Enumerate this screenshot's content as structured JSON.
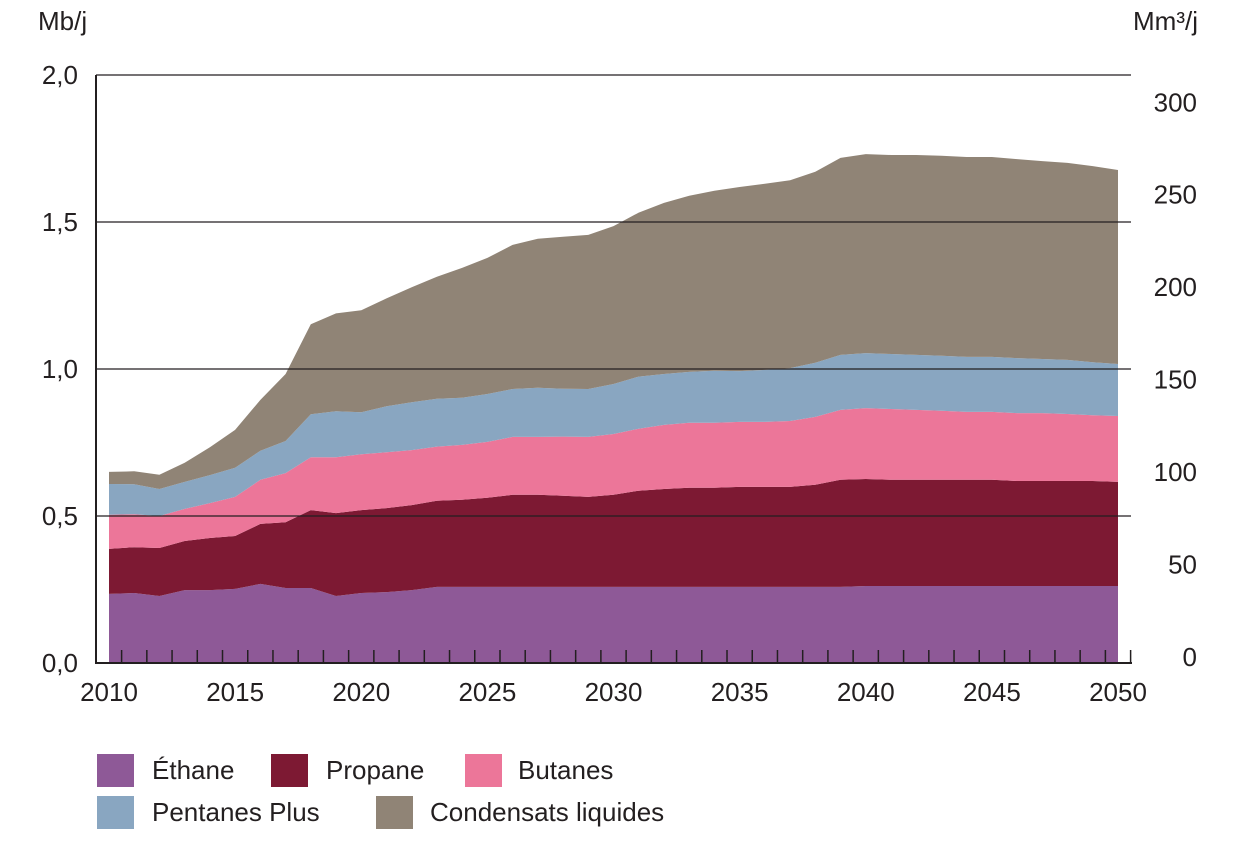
{
  "chart_data": {
    "type": "area",
    "stacked": true,
    "x": [
      2010,
      2011,
      2012,
      2013,
      2014,
      2015,
      2016,
      2017,
      2018,
      2019,
      2020,
      2021,
      2022,
      2023,
      2024,
      2025,
      2026,
      2027,
      2028,
      2029,
      2030,
      2031,
      2032,
      2033,
      2034,
      2035,
      2036,
      2037,
      2038,
      2039,
      2040,
      2041,
      2042,
      2043,
      2044,
      2045,
      2046,
      2047,
      2048,
      2049,
      2050
    ],
    "series": [
      {
        "name": "Éthane",
        "color": "#8e5997",
        "values": [
          0.235,
          0.238,
          0.228,
          0.248,
          0.248,
          0.252,
          0.269,
          0.255,
          0.255,
          0.228,
          0.238,
          0.241,
          0.248,
          0.259,
          0.259,
          0.259,
          0.259,
          0.259,
          0.259,
          0.259,
          0.259,
          0.259,
          0.259,
          0.259,
          0.259,
          0.259,
          0.259,
          0.259,
          0.259,
          0.259,
          0.262,
          0.262,
          0.262,
          0.262,
          0.262,
          0.262,
          0.262,
          0.262,
          0.262,
          0.262,
          0.262
        ]
      },
      {
        "name": "Propane",
        "color": "#7d1933",
        "values": [
          0.153,
          0.156,
          0.163,
          0.167,
          0.177,
          0.18,
          0.204,
          0.224,
          0.265,
          0.282,
          0.282,
          0.286,
          0.289,
          0.293,
          0.296,
          0.303,
          0.313,
          0.313,
          0.31,
          0.306,
          0.313,
          0.327,
          0.333,
          0.337,
          0.337,
          0.34,
          0.34,
          0.34,
          0.347,
          0.364,
          0.364,
          0.361,
          0.361,
          0.361,
          0.361,
          0.361,
          0.357,
          0.357,
          0.357,
          0.357,
          0.354
        ]
      },
      {
        "name": "Butanes",
        "color": "#ec7699",
        "values": [
          0.116,
          0.112,
          0.109,
          0.109,
          0.119,
          0.133,
          0.15,
          0.167,
          0.18,
          0.19,
          0.19,
          0.19,
          0.187,
          0.184,
          0.187,
          0.19,
          0.197,
          0.197,
          0.201,
          0.204,
          0.207,
          0.211,
          0.218,
          0.221,
          0.221,
          0.221,
          0.221,
          0.224,
          0.231,
          0.238,
          0.241,
          0.241,
          0.238,
          0.235,
          0.231,
          0.231,
          0.231,
          0.231,
          0.228,
          0.224,
          0.224
        ]
      },
      {
        "name": "Pentanes Plus",
        "color": "#89a6c1",
        "values": [
          0.105,
          0.102,
          0.092,
          0.092,
          0.095,
          0.099,
          0.099,
          0.109,
          0.146,
          0.156,
          0.143,
          0.156,
          0.163,
          0.163,
          0.16,
          0.163,
          0.163,
          0.167,
          0.163,
          0.163,
          0.17,
          0.177,
          0.173,
          0.173,
          0.177,
          0.173,
          0.177,
          0.18,
          0.184,
          0.187,
          0.187,
          0.187,
          0.187,
          0.187,
          0.187,
          0.187,
          0.187,
          0.184,
          0.184,
          0.18,
          0.177
        ]
      },
      {
        "name": "Condensats liquides",
        "color": "#908476",
        "values": [
          0.041,
          0.044,
          0.048,
          0.065,
          0.095,
          0.129,
          0.173,
          0.228,
          0.306,
          0.333,
          0.347,
          0.367,
          0.391,
          0.415,
          0.442,
          0.463,
          0.49,
          0.507,
          0.517,
          0.524,
          0.537,
          0.558,
          0.582,
          0.599,
          0.612,
          0.626,
          0.633,
          0.639,
          0.65,
          0.67,
          0.677,
          0.677,
          0.68,
          0.68,
          0.68,
          0.68,
          0.677,
          0.673,
          0.67,
          0.667,
          0.66
        ]
      }
    ],
    "ylabel_left": "Mb/j",
    "ylabel_right": "Mm³/j",
    "ylim": [
      0,
      2.0
    ],
    "yticks_left": [
      "0,0",
      "0,5",
      "1,0",
      "1,5",
      "2,0"
    ],
    "yticks_right": [
      "0",
      "50",
      "100",
      "150",
      "200",
      "250",
      "300"
    ],
    "xticks": [
      "2010",
      "2015",
      "2020",
      "2025",
      "2030",
      "2035",
      "2040",
      "2045",
      "2050"
    ],
    "grid": true,
    "legend_position": "bottom-left"
  }
}
